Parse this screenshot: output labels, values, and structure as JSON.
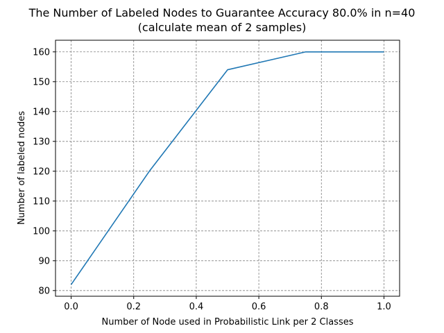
{
  "chart_data": {
    "type": "line",
    "title": "The Number of Labeled Nodes to Guarantee Accuracy 80.0% in n=40",
    "subtitle": "(calculate mean of 2 samples)",
    "xlabel": "Number of Node used in Probabilistic Link per 2 Classes",
    "ylabel": "Number of labeled nodes",
    "x": [
      0.0,
      0.25,
      0.5,
      0.75,
      1.0
    ],
    "series": [
      {
        "values": [
          82,
          120,
          154,
          160,
          160
        ],
        "color": "#1f77b4"
      }
    ],
    "xlim": [
      -0.05,
      1.05
    ],
    "ylim": [
      78.1,
      163.9
    ],
    "xticks": [
      0.0,
      0.2,
      0.4,
      0.6,
      0.8,
      1.0
    ],
    "xtick_labels": [
      "0.0",
      "0.2",
      "0.4",
      "0.6",
      "0.8",
      "1.0"
    ],
    "yticks": [
      80,
      90,
      100,
      110,
      120,
      130,
      140,
      150,
      160
    ],
    "ytick_labels": [
      "80",
      "90",
      "100",
      "110",
      "120",
      "130",
      "140",
      "150",
      "160"
    ],
    "grid": true,
    "grid_style": "dashed",
    "grid_color": "#808080"
  }
}
